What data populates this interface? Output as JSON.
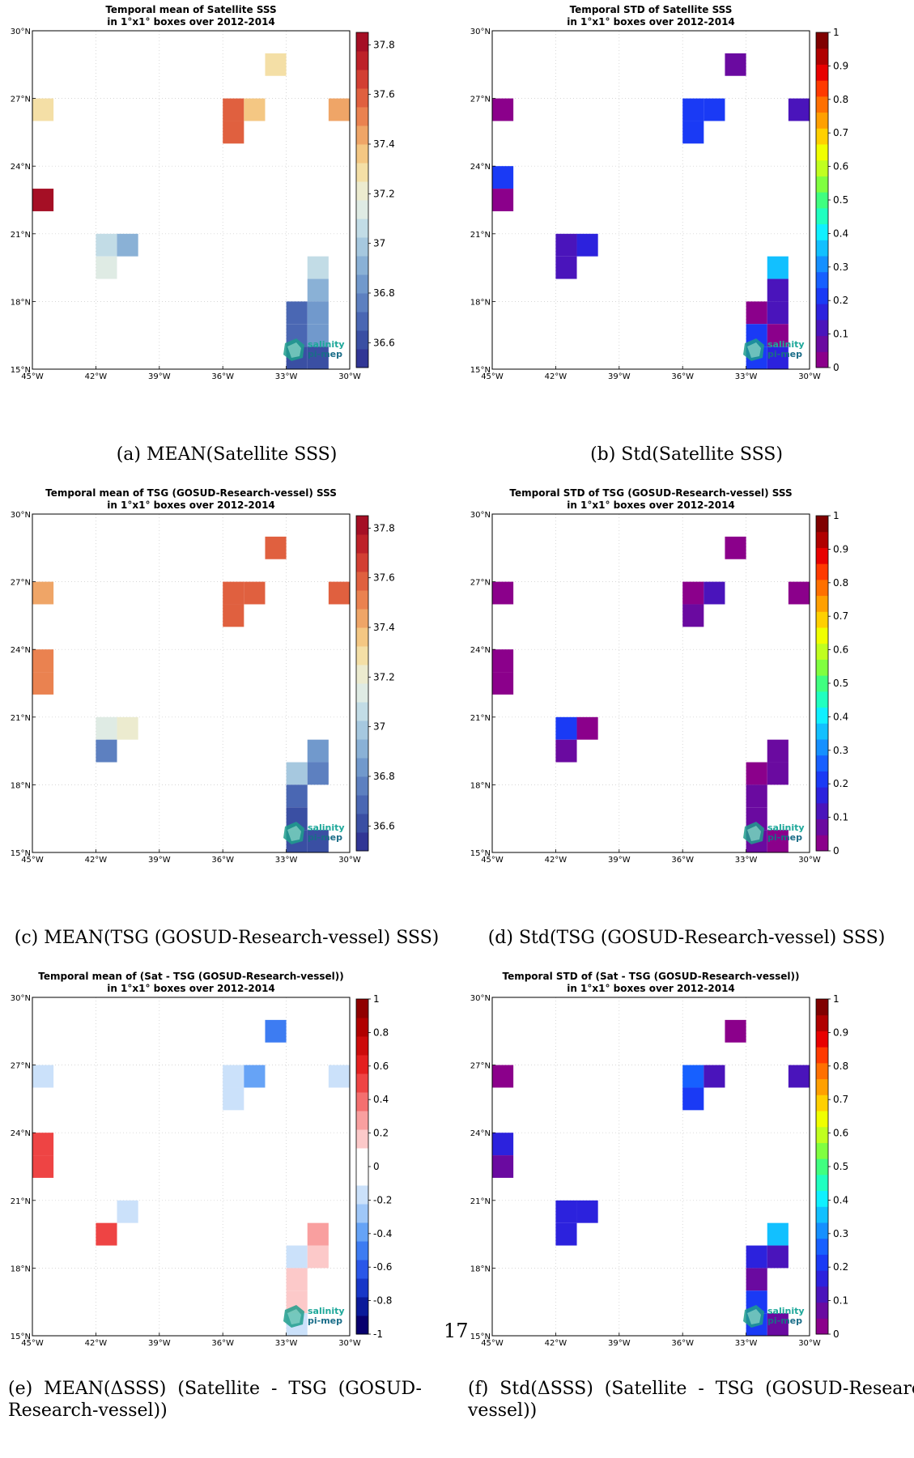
{
  "page_number": "17",
  "logo": {
    "line1": "salinity",
    "line2": "pi-mep"
  },
  "axes": {
    "lon_ticks": [
      "45°W",
      "42°W",
      "39°W",
      "36°W",
      "33°W",
      "30°W"
    ],
    "lat_ticks": [
      "15°N",
      "18°N",
      "21°N",
      "24°N",
      "27°N",
      "30°N"
    ]
  },
  "colormap_colors": {
    "mean_palette": [
      "#313695",
      "#3a4fa3",
      "#4a67b3",
      "#5d80c0",
      "#7199cc",
      "#8ab1d6",
      "#a6c8df",
      "#c2dce6",
      "#dfebe4",
      "#ecebcf",
      "#f4dfa6",
      "#f4c783",
      "#efa567",
      "#ea8250",
      "#e0603f",
      "#d23f33",
      "#bd2129",
      "#a50f25"
    ],
    "diff_palette": [
      "#08006e",
      "#0a1a9a",
      "#1737c8",
      "#2a57e8",
      "#3d7cf2",
      "#66a3f6",
      "#9fc7f8",
      "#cbe1fa",
      "#ffffff",
      "#ffffff",
      "#fcc9c9",
      "#f99f9f",
      "#f46f6f",
      "#ee4444",
      "#e41f1f",
      "#cc0b0b",
      "#b00000",
      "#900000"
    ],
    "jet": [
      "#8b008b",
      "#6a0aa0",
      "#4a14bb",
      "#2c22dd",
      "#1a3af5",
      "#1760ff",
      "#1590ff",
      "#12c0ff",
      "#10f0ff",
      "#20ffc0",
      "#40ff80",
      "#80ff40",
      "#c0ff20",
      "#f0ff00",
      "#ffd000",
      "#ffa000",
      "#ff7000",
      "#ff3a00",
      "#e80000",
      "#b00000",
      "#800000"
    ]
  },
  "chart_data": [
    {
      "id": "a",
      "type": "heatmap",
      "title": "Temporal mean of Satellite SSS\nin 1°x1° boxes over 2012-2014",
      "caption": "(a) MEAN(Satellite SSS)",
      "xlim": [
        -45,
        -30
      ],
      "ylim": [
        15,
        30
      ],
      "palette": "mean_palette",
      "colorbar": {
        "range": [
          36.5,
          37.85
        ],
        "ticks": [
          "36.6",
          "36.8",
          "37",
          "37.2",
          "37.4",
          "37.6",
          "37.8"
        ],
        "tick_values": [
          36.6,
          36.8,
          37.0,
          37.2,
          37.4,
          37.6,
          37.8
        ]
      },
      "cells": [
        {
          "lon": -45,
          "lat": 26,
          "value": 37.32
        },
        {
          "lon": -45,
          "lat": 22,
          "value": 37.82
        },
        {
          "lon": -42,
          "lat": 20,
          "value": 37.05
        },
        {
          "lon": -41,
          "lat": 20,
          "value": 36.92
        },
        {
          "lon": -42,
          "lat": 19,
          "value": 37.15
        },
        {
          "lon": -36,
          "lat": 26,
          "value": 37.58
        },
        {
          "lon": -36,
          "lat": 25,
          "value": 37.58
        },
        {
          "lon": -35,
          "lat": 26,
          "value": 37.4
        },
        {
          "lon": -34,
          "lat": 28,
          "value": 37.32
        },
        {
          "lon": -31,
          "lat": 26,
          "value": 37.45
        },
        {
          "lon": -32,
          "lat": 19,
          "value": 37.05
        },
        {
          "lon": -32,
          "lat": 18,
          "value": 36.88
        },
        {
          "lon": -33,
          "lat": 17,
          "value": 36.68
        },
        {
          "lon": -32,
          "lat": 17,
          "value": 36.85
        },
        {
          "lon": -33,
          "lat": 16,
          "value": 36.72
        },
        {
          "lon": -32,
          "lat": 16,
          "value": 36.85
        },
        {
          "lon": -33,
          "lat": 15,
          "value": 36.6
        },
        {
          "lon": -32,
          "lat": 15,
          "value": 36.6
        }
      ]
    },
    {
      "id": "b",
      "type": "heatmap",
      "title": "Temporal STD of Satellite SSS\nin 1°x1° boxes over 2012-2014",
      "caption": "(b) Std(Satellite SSS)",
      "xlim": [
        -45,
        -30
      ],
      "ylim": [
        15,
        30
      ],
      "palette": "jet",
      "colorbar": {
        "range": [
          0,
          1
        ],
        "ticks": [
          "0",
          "0.1",
          "0.2",
          "0.3",
          "0.4",
          "0.5",
          "0.6",
          "0.7",
          "0.8",
          "0.9",
          "1"
        ],
        "tick_values": [
          0,
          0.1,
          0.2,
          0.3,
          0.4,
          0.5,
          0.6,
          0.7,
          0.8,
          0.9,
          1
        ]
      },
      "cells": [
        {
          "lon": -45,
          "lat": 26,
          "value": 0.02
        },
        {
          "lon": -45,
          "lat": 23,
          "value": 0.22
        },
        {
          "lon": -45,
          "lat": 22,
          "value": 0.04
        },
        {
          "lon": -42,
          "lat": 20,
          "value": 0.12
        },
        {
          "lon": -41,
          "lat": 20,
          "value": 0.16
        },
        {
          "lon": -42,
          "lat": 19,
          "value": 0.12
        },
        {
          "lon": -36,
          "lat": 26,
          "value": 0.22
        },
        {
          "lon": -35,
          "lat": 26,
          "value": 0.2
        },
        {
          "lon": -36,
          "lat": 25,
          "value": 0.22
        },
        {
          "lon": -34,
          "lat": 28,
          "value": 0.08
        },
        {
          "lon": -31,
          "lat": 26,
          "value": 0.14
        },
        {
          "lon": -32,
          "lat": 19,
          "value": 0.38
        },
        {
          "lon": -32,
          "lat": 18,
          "value": 0.12
        },
        {
          "lon": -33,
          "lat": 17,
          "value": 0.04
        },
        {
          "lon": -32,
          "lat": 17,
          "value": 0.12
        },
        {
          "lon": -33,
          "lat": 16,
          "value": 0.22
        },
        {
          "lon": -32,
          "lat": 16,
          "value": 0.04
        },
        {
          "lon": -33,
          "lat": 15,
          "value": 0.22
        },
        {
          "lon": -32,
          "lat": 15,
          "value": 0.16
        }
      ]
    },
    {
      "id": "c",
      "type": "heatmap",
      "title": "Temporal mean of TSG (GOSUD-Research-vessel) SSS\nin 1°x1° boxes over 2012-2014",
      "caption": "(c) MEAN(TSG (GOSUD-Research-vessel) SSS)",
      "xlim": [
        -45,
        -30
      ],
      "ylim": [
        15,
        30
      ],
      "palette": "mean_palette",
      "colorbar": {
        "range": [
          36.5,
          37.85
        ],
        "ticks": [
          "36.6",
          "36.8",
          "37",
          "37.2",
          "37.4",
          "37.6",
          "37.8"
        ],
        "tick_values": [
          36.6,
          36.8,
          37.0,
          37.2,
          37.4,
          37.6,
          37.8
        ]
      },
      "cells": [
        {
          "lon": -45,
          "lat": 26,
          "value": 37.45
        },
        {
          "lon": -45,
          "lat": 23,
          "value": 37.52
        },
        {
          "lon": -45,
          "lat": 22,
          "value": 37.52
        },
        {
          "lon": -42,
          "lat": 20,
          "value": 37.15
        },
        {
          "lon": -41,
          "lat": 20,
          "value": 37.22
        },
        {
          "lon": -42,
          "lat": 19,
          "value": 36.75
        },
        {
          "lon": -36,
          "lat": 26,
          "value": 37.62
        },
        {
          "lon": -35,
          "lat": 26,
          "value": 37.62
        },
        {
          "lon": -36,
          "lat": 25,
          "value": 37.62
        },
        {
          "lon": -34,
          "lat": 28,
          "value": 37.62
        },
        {
          "lon": -31,
          "lat": 26,
          "value": 37.62
        },
        {
          "lon": -32,
          "lat": 19,
          "value": 36.85
        },
        {
          "lon": -33,
          "lat": 18,
          "value": 36.95
        },
        {
          "lon": -32,
          "lat": 18,
          "value": 36.8
        },
        {
          "lon": -33,
          "lat": 17,
          "value": 36.7
        },
        {
          "lon": -33,
          "lat": 16,
          "value": 36.6
        },
        {
          "lon": -33,
          "lat": 15,
          "value": 36.6
        },
        {
          "lon": -32,
          "lat": 15,
          "value": 36.65
        }
      ]
    },
    {
      "id": "d",
      "type": "heatmap",
      "title": "Temporal STD of TSG (GOSUD-Research-vessel) SSS\nin 1°x1° boxes over 2012-2014",
      "caption": "(d) Std(TSG (GOSUD-Research-vessel) SSS)",
      "xlim": [
        -45,
        -30
      ],
      "ylim": [
        15,
        30
      ],
      "palette": "jet",
      "colorbar": {
        "range": [
          0,
          1
        ],
        "ticks": [
          "0",
          "0.1",
          "0.2",
          "0.3",
          "0.4",
          "0.5",
          "0.6",
          "0.7",
          "0.8",
          "0.9",
          "1"
        ],
        "tick_values": [
          0,
          0.1,
          0.2,
          0.3,
          0.4,
          0.5,
          0.6,
          0.7,
          0.8,
          0.9,
          1
        ]
      },
      "cells": [
        {
          "lon": -45,
          "lat": 26,
          "value": 0.02
        },
        {
          "lon": -45,
          "lat": 23,
          "value": 0.02
        },
        {
          "lon": -45,
          "lat": 22,
          "value": 0.02
        },
        {
          "lon": -42,
          "lat": 20,
          "value": 0.22
        },
        {
          "lon": -41,
          "lat": 20,
          "value": 0.03
        },
        {
          "lon": -42,
          "lat": 19,
          "value": 0.06
        },
        {
          "lon": -36,
          "lat": 26,
          "value": 0.04
        },
        {
          "lon": -35,
          "lat": 26,
          "value": 0.1
        },
        {
          "lon": -36,
          "lat": 25,
          "value": 0.08
        },
        {
          "lon": -34,
          "lat": 28,
          "value": 0.03
        },
        {
          "lon": -31,
          "lat": 26,
          "value": 0.03
        },
        {
          "lon": -32,
          "lat": 19,
          "value": 0.06
        },
        {
          "lon": -33,
          "lat": 18,
          "value": 0.03
        },
        {
          "lon": -32,
          "lat": 18,
          "value": 0.06
        },
        {
          "lon": -33,
          "lat": 17,
          "value": 0.08
        },
        {
          "lon": -33,
          "lat": 16,
          "value": 0.08
        },
        {
          "lon": -33,
          "lat": 15,
          "value": 0.06
        },
        {
          "lon": -32,
          "lat": 15,
          "value": 0.04
        }
      ]
    },
    {
      "id": "e",
      "type": "heatmap",
      "title": "Temporal mean of (Sat - TSG (GOSUD-Research-vessel))\nin 1°x1° boxes over 2012-2014",
      "caption": "(e) MEAN(ΔSSS) (Satellite - TSG (GOSUD-Research-vessel))",
      "caption_lines": [
        "(e)  MEAN(ΔSSS)  (Satellite  -  TSG  (GOSUD-",
        "Research-vessel))"
      ],
      "xlim": [
        -45,
        -30
      ],
      "ylim": [
        15,
        30
      ],
      "palette": "diff_palette",
      "colorbar": {
        "range": [
          -1,
          1
        ],
        "ticks": [
          "-1",
          "-0.8",
          "-0.6",
          "-0.4",
          "-0.2",
          "0",
          "0.2",
          "0.4",
          "0.6",
          "0.8",
          "1"
        ],
        "tick_values": [
          -1,
          -0.8,
          -0.6,
          -0.4,
          -0.2,
          0,
          0.2,
          0.4,
          0.6,
          0.8,
          1
        ]
      },
      "cells": [
        {
          "lon": -45,
          "lat": 26,
          "value": -0.15
        },
        {
          "lon": -45,
          "lat": 23,
          "value": 0.5
        },
        {
          "lon": -45,
          "lat": 22,
          "value": 0.5
        },
        {
          "lon": -41,
          "lat": 20,
          "value": -0.15
        },
        {
          "lon": -42,
          "lat": 19,
          "value": 0.55
        },
        {
          "lon": -36,
          "lat": 26,
          "value": -0.15
        },
        {
          "lon": -35,
          "lat": 26,
          "value": -0.35
        },
        {
          "lon": -36,
          "lat": 25,
          "value": -0.15
        },
        {
          "lon": -34,
          "lat": 28,
          "value": -0.45
        },
        {
          "lon": -31,
          "lat": 26,
          "value": -0.15
        },
        {
          "lon": -32,
          "lat": 19,
          "value": 0.3
        },
        {
          "lon": -33,
          "lat": 18,
          "value": -0.15
        },
        {
          "lon": -32,
          "lat": 18,
          "value": 0.15
        },
        {
          "lon": -33,
          "lat": 17,
          "value": 0.15
        },
        {
          "lon": -33,
          "lat": 16,
          "value": 0.15
        },
        {
          "lon": -33,
          "lat": 15,
          "value": -0.15
        }
      ]
    },
    {
      "id": "f",
      "type": "heatmap",
      "title": "Temporal STD of (Sat - TSG (GOSUD-Research-vessel))\nin 1°x1° boxes over 2012-2014",
      "caption": "(f) Std(ΔSSS) (Satellite - TSG (GOSUD-Research-vessel))",
      "caption_lines": [
        "(f)  Std(ΔSSS)  (Satellite  -  TSG  (GOSUD-Research-",
        "vessel))"
      ],
      "xlim": [
        -45,
        -30
      ],
      "ylim": [
        15,
        30
      ],
      "palette": "jet",
      "colorbar": {
        "range": [
          0,
          1
        ],
        "ticks": [
          "0",
          "0.1",
          "0.2",
          "0.3",
          "0.4",
          "0.5",
          "0.6",
          "0.7",
          "0.8",
          "0.9",
          "1"
        ],
        "tick_values": [
          0,
          0.1,
          0.2,
          0.3,
          0.4,
          0.5,
          0.6,
          0.7,
          0.8,
          0.9,
          1
        ]
      },
      "cells": [
        {
          "lon": -45,
          "lat": 26,
          "value": 0.03
        },
        {
          "lon": -45,
          "lat": 23,
          "value": 0.18
        },
        {
          "lon": -45,
          "lat": 22,
          "value": 0.08
        },
        {
          "lon": -42,
          "lat": 20,
          "value": 0.18
        },
        {
          "lon": -41,
          "lat": 20,
          "value": 0.18
        },
        {
          "lon": -42,
          "lat": 19,
          "value": 0.18
        },
        {
          "lon": -36,
          "lat": 26,
          "value": 0.24
        },
        {
          "lon": -35,
          "lat": 26,
          "value": 0.14
        },
        {
          "lon": -36,
          "lat": 25,
          "value": 0.22
        },
        {
          "lon": -34,
          "lat": 28,
          "value": 0.03
        },
        {
          "lon": -31,
          "lat": 26,
          "value": 0.14
        },
        {
          "lon": -32,
          "lat": 19,
          "value": 0.34
        },
        {
          "lon": -33,
          "lat": 18,
          "value": 0.16
        },
        {
          "lon": -32,
          "lat": 18,
          "value": 0.14
        },
        {
          "lon": -33,
          "lat": 17,
          "value": 0.08
        },
        {
          "lon": -33,
          "lat": 16,
          "value": 0.2
        },
        {
          "lon": -33,
          "lat": 15,
          "value": 0.2
        },
        {
          "lon": -32,
          "lat": 15,
          "value": 0.06
        }
      ]
    }
  ]
}
